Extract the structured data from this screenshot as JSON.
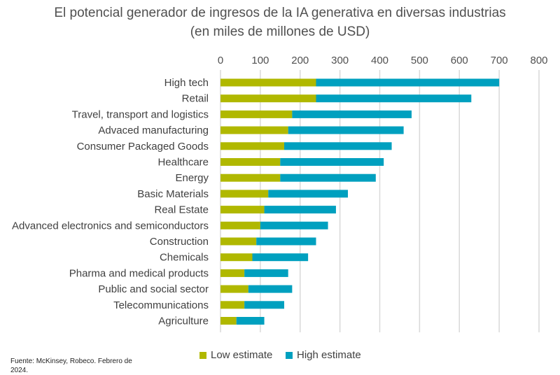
{
  "chart_data": {
    "type": "bar",
    "orientation": "horizontal",
    "title": "El potencial generador de ingresos de la IA generativa en diversas industrias",
    "subtitle": "(en miles de millones de USD)",
    "categories": [
      "High tech",
      "Retail",
      "Travel, transport and logistics",
      "Advaced manufacturing",
      "Consumer Packaged Goods",
      "Healthcare",
      "Energy",
      "Basic Materials",
      "Real Estate",
      "Advanced electronics and semiconductors",
      "Construction",
      "Chemicals",
      "Pharma and medical products",
      "Public and social sector",
      "Telecommunications",
      "Agriculture"
    ],
    "series": [
      {
        "name": "Low estimate",
        "color": "#b0b800",
        "values": [
          240,
          240,
          180,
          170,
          160,
          150,
          150,
          120,
          110,
          100,
          90,
          80,
          60,
          70,
          60,
          40
        ]
      },
      {
        "name": "High estimate",
        "color": "#00a0bf",
        "values": [
          700,
          630,
          480,
          460,
          430,
          410,
          390,
          320,
          290,
          270,
          240,
          220,
          170,
          180,
          160,
          110
        ]
      }
    ],
    "xlim": [
      0,
      800
    ],
    "xticks": [
      "0",
      "100",
      "200",
      "300",
      "400",
      "500",
      "600",
      "700",
      "800"
    ],
    "grid": true,
    "legend": "bottom"
  },
  "source": "Fuente: McKinsey, Robeco. Febrero de 2024."
}
